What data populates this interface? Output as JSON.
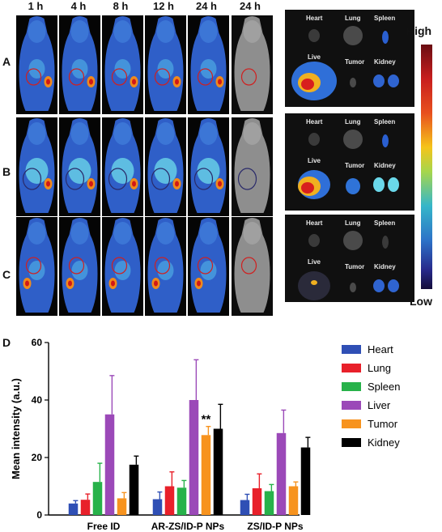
{
  "imaging": {
    "time_labels": [
      "1 h",
      "4 h",
      "8 h",
      "12 h",
      "24 h",
      "24 h"
    ],
    "rows": [
      "A",
      "B",
      "C"
    ],
    "organ_labels": [
      "Heart",
      "Lung",
      "Spleen",
      "Live",
      "Tumor",
      "Kidney"
    ],
    "scale_high": "High",
    "scale_low": "Low",
    "panel_letter": "D"
  },
  "chart_data": {
    "type": "bar",
    "categories": [
      "Free ID",
      "AR-ZS/ID-P NPs",
      "ZS/ID-P NPs"
    ],
    "ylabel": "Mean intensity (a.u.)",
    "xlabel": "",
    "ylim": [
      0,
      60
    ],
    "yticks": [
      0,
      20,
      40,
      60
    ],
    "legend_position": "right",
    "annotation": "**",
    "series": [
      {
        "name": "Heart",
        "color": "#2f4fb5",
        "values": [
          4.0,
          5.5,
          5.2
        ],
        "errors": [
          1.0,
          2.5,
          2.0
        ]
      },
      {
        "name": "Lung",
        "color": "#e8202a",
        "values": [
          5.3,
          10.0,
          9.3
        ],
        "errors": [
          2.0,
          5.0,
          5.0
        ]
      },
      {
        "name": "Spleen",
        "color": "#27b24a",
        "values": [
          11.5,
          9.5,
          8.3
        ],
        "errors": [
          6.5,
          2.5,
          2.3
        ]
      },
      {
        "name": "Liver",
        "color": "#9b49b8",
        "values": [
          35.0,
          40.0,
          28.5
        ],
        "errors": [
          13.5,
          14.0,
          8.0
        ]
      },
      {
        "name": "Tumor",
        "color": "#f7931e",
        "values": [
          5.8,
          27.8,
          10.0
        ],
        "errors": [
          2.0,
          3.0,
          1.5
        ]
      },
      {
        "name": "Kidney",
        "color": "#000000",
        "values": [
          17.5,
          30.0,
          23.5
        ],
        "errors": [
          3.0,
          8.5,
          3.5
        ]
      }
    ]
  }
}
